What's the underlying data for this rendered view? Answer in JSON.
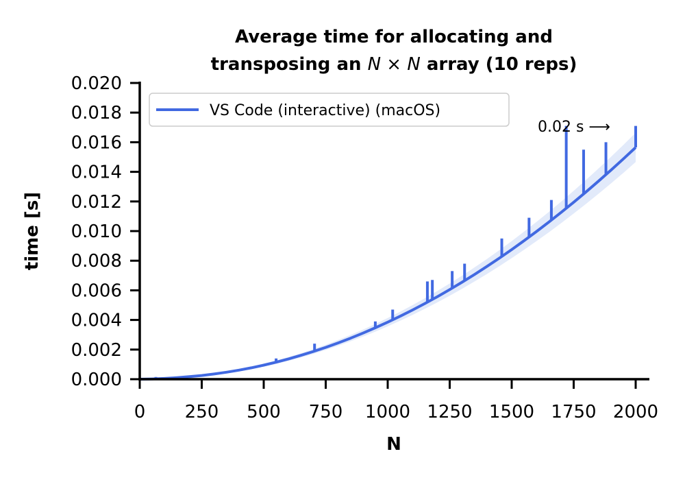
{
  "chart_data": {
    "type": "line",
    "title_line1": "Average time for allocating and",
    "title_line2_pre": "transposing an ",
    "title_line2_math": "N × N",
    "title_line2_post": " array (10 reps)",
    "xlabel": "N",
    "ylabel": "time [s]",
    "xlim": [
      0,
      2000
    ],
    "ylim": [
      0,
      0.02
    ],
    "xticks": [
      "0",
      "250",
      "500",
      "750",
      "1000",
      "1250",
      "1500",
      "1750",
      "2000"
    ],
    "yticks": [
      "0.000",
      "0.002",
      "0.004",
      "0.006",
      "0.008",
      "0.010",
      "0.012",
      "0.014",
      "0.016",
      "0.018",
      "0.020"
    ],
    "grid": false,
    "legend_position": "top-left",
    "annotation": "0.02 s ⟶",
    "colors": {
      "series": "#4169e1",
      "band": "#c6d5f5"
    },
    "series": [
      {
        "name": "VS Code (interactive) (macOS)",
        "x": [
          0,
          50,
          100,
          150,
          200,
          250,
          300,
          350,
          400,
          450,
          500,
          550,
          600,
          650,
          700,
          750,
          800,
          850,
          900,
          950,
          1000,
          1050,
          1100,
          1150,
          1200,
          1250,
          1300,
          1350,
          1400,
          1450,
          1500,
          1550,
          1600,
          1650,
          1700,
          1750,
          1800,
          1850,
          1900,
          1950,
          2000
        ],
        "y": [
          0.0,
          2e-05,
          5e-05,
          0.0001,
          0.00017,
          0.00025,
          0.00035,
          0.00047,
          0.00061,
          0.00077,
          0.00095,
          0.00115,
          0.00137,
          0.00161,
          0.00187,
          0.00215,
          0.00245,
          0.00277,
          0.00311,
          0.00347,
          0.00385,
          0.00425,
          0.00467,
          0.00511,
          0.00557,
          0.00605,
          0.00655,
          0.00707,
          0.00761,
          0.00817,
          0.00875,
          0.00935,
          0.00997,
          0.01061,
          0.01127,
          0.01195,
          0.01265,
          0.01337,
          0.01411,
          0.01487,
          0.01565
        ]
      }
    ],
    "spikes": [
      {
        "x": 65,
        "y": 0.00015
      },
      {
        "x": 550,
        "y": 0.0014
      },
      {
        "x": 705,
        "y": 0.0024
      },
      {
        "x": 950,
        "y": 0.0039
      },
      {
        "x": 1020,
        "y": 0.0047
      },
      {
        "x": 1160,
        "y": 0.0066
      },
      {
        "x": 1180,
        "y": 0.0067
      },
      {
        "x": 1260,
        "y": 0.0073
      },
      {
        "x": 1310,
        "y": 0.0078
      },
      {
        "x": 1460,
        "y": 0.0095
      },
      {
        "x": 1570,
        "y": 0.0109
      },
      {
        "x": 1660,
        "y": 0.0121
      },
      {
        "x": 1720,
        "y": 0.0171
      },
      {
        "x": 1790,
        "y": 0.0155
      },
      {
        "x": 1880,
        "y": 0.016
      },
      {
        "x": 2000,
        "y": 0.0171
      }
    ]
  }
}
